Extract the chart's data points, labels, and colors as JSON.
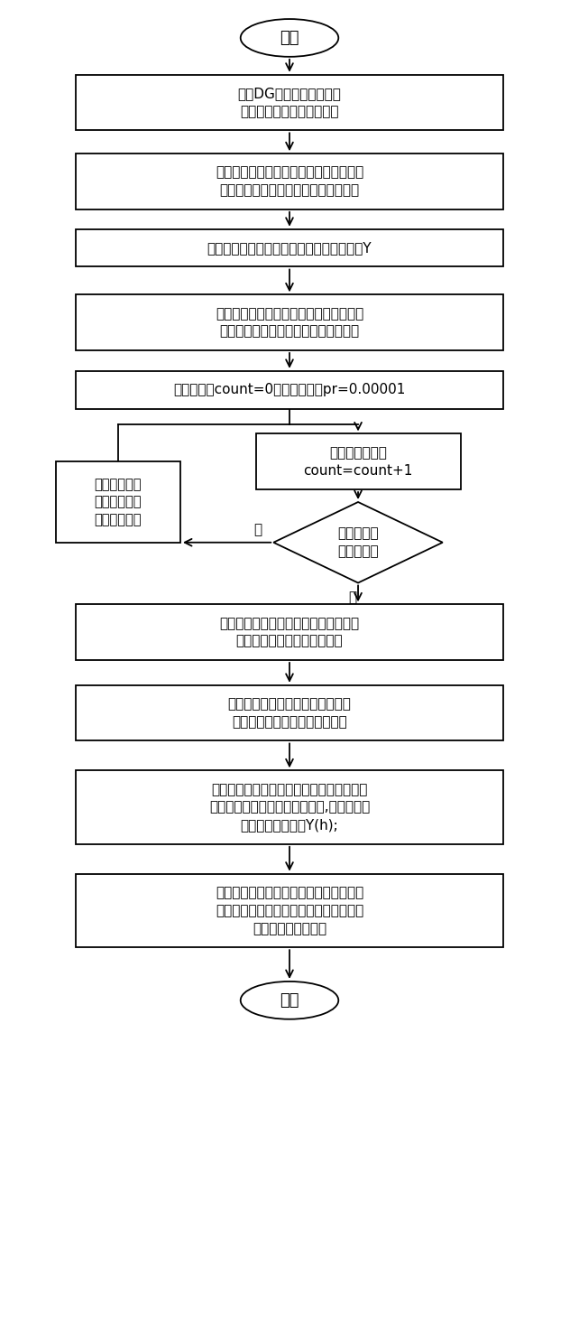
{
  "bg_color": "#ffffff",
  "box_edge_color": "#000000",
  "text_color": "#000000",
  "start_text": "开始",
  "end_text": "结束",
  "box1_text": "测得DG接入节点的输出功\n率，多次测量取得数据样本",
  "box2_text": "根据数据样本，利用逆向云发生器，产生\n正态云数字特征值：期望、熵、超熵。",
  "box3_text": "输入系统网络原始数据，形成节点导纳矩阵Y",
  "box4_text": "设平衡节点功率值和非平衡节点的电压初\n值，并根据云期望设置不确定节点功率",
  "box5_text": "令迭代次数count=0，设精度误差pr=0.00001",
  "box6_text": "进行潮流计算；\ncount=count+1",
  "diamond_text": "精度误差小\n于设置要求",
  "box7_text": "修正平衡节点\n功率值与非平\n衡节点电压值",
  "box8_text": "利用系统敏感系数与输入变量范围值求\n潮流输出变量的可能性范围值",
  "box9_text": "在基波云潮流基础上，根据谐波源\n运行特性计算节点注入谐波电流",
  "box10_text": "依据所在电网络中元器件的特性，得出元器\n件在各次谐波下的等效谐波参数,求得相应的\n网络谐波导纳矩阵Y(h);",
  "box11_text": "基于谐波导纳矩阵与节点谐波电流量求解\n出电网节点谐波电压，在进一步求解节点\n电压总谐波畸变率等",
  "no_text": "否",
  "yes_text": "是"
}
